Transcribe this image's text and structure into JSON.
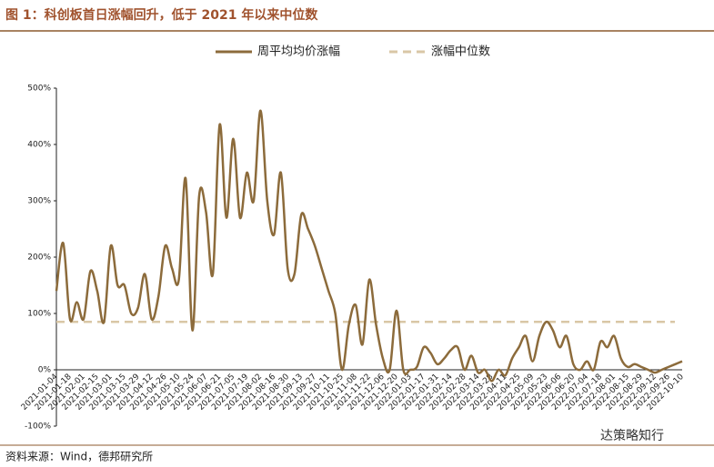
{
  "chart_data": {
    "type": "line",
    "title": "图 1：科创板首日涨幅回升，低于 2021 年以来中位数",
    "source": "资料来源：Wind，德邦研究所",
    "watermark": "达策略知行",
    "categories": [
      "2021-01-04",
      null,
      "2021-01-18",
      null,
      "2021-02-01",
      null,
      "2021-02-15",
      null,
      "2021-03-01",
      null,
      "2021-03-15",
      null,
      "2021-03-29",
      null,
      "2021-04-12",
      null,
      "2021-04-26",
      null,
      "2021-05-10",
      null,
      "2021-05-24",
      null,
      "2021-06-07",
      null,
      "2021-06-21",
      null,
      "2021-07-05",
      null,
      "2021-07-19",
      null,
      "2021-08-02",
      null,
      "2021-08-16",
      null,
      "2021-08-30",
      null,
      "2021-09-13",
      null,
      "2021-09-27",
      null,
      "2021-10-11",
      null,
      "2021-10-25",
      null,
      "2021-11-08",
      null,
      "2021-11-22",
      null,
      "2021-12-06",
      null,
      "2021-12-20",
      null,
      "2022-01-03",
      null,
      "2022-01-17",
      null,
      "2022-01-31",
      null,
      "2022-02-14",
      null,
      "2022-02-28",
      null,
      "2022-03-14",
      null,
      "2022-03-28",
      null,
      "2022-04-11",
      null,
      "2022-04-25",
      null,
      "2022-05-09",
      null,
      "2022-05-23",
      null,
      "2022-06-06",
      null,
      "2022-06-20",
      null,
      "2022-07-04",
      null,
      "2022-07-18",
      null,
      "2022-08-01",
      null,
      "2022-08-15",
      null,
      "2022-08-29",
      null,
      "2022-09-12",
      null,
      "2022-09-26",
      null,
      "2022-10-10"
    ],
    "series": [
      {
        "name": "周平均均价涨幅",
        "color": "#8c6b3b",
        "values": [
          140,
          225,
          90,
          120,
          90,
          175,
          140,
          85,
          220,
          150,
          150,
          100,
          110,
          170,
          90,
          130,
          220,
          180,
          160,
          340,
          70,
          310,
          280,
          170,
          435,
          270,
          410,
          270,
          350,
          300,
          460,
          300,
          240,
          350,
          180,
          170,
          275,
          250,
          220,
          180,
          140,
          100,
          0,
          80,
          115,
          45,
          160,
          80,
          20,
          0,
          105,
          0,
          0,
          5,
          40,
          30,
          10,
          20,
          35,
          40,
          0,
          25,
          -5,
          0,
          -20,
          0,
          -10,
          20,
          40,
          60,
          15,
          60,
          85,
          70,
          40,
          60,
          10,
          0,
          15,
          0,
          50,
          40,
          60,
          20,
          5,
          10,
          5,
          0,
          -5,
          0,
          5,
          10,
          15
        ]
      }
    ],
    "reference": {
      "name": "涨幅中位数",
      "value": 85,
      "color": "#d9c7a6"
    },
    "ylim": [
      -100,
      500
    ],
    "yticks": [
      {
        "value": -100,
        "label": "-100%"
      },
      {
        "value": 0,
        "label": "0%"
      },
      {
        "value": 100,
        "label": "100%"
      },
      {
        "value": 200,
        "label": "200%"
      },
      {
        "value": 300,
        "label": "300%"
      },
      {
        "value": 400,
        "label": "400%"
      },
      {
        "value": 500,
        "label": "500%"
      }
    ],
    "legend": "top"
  }
}
